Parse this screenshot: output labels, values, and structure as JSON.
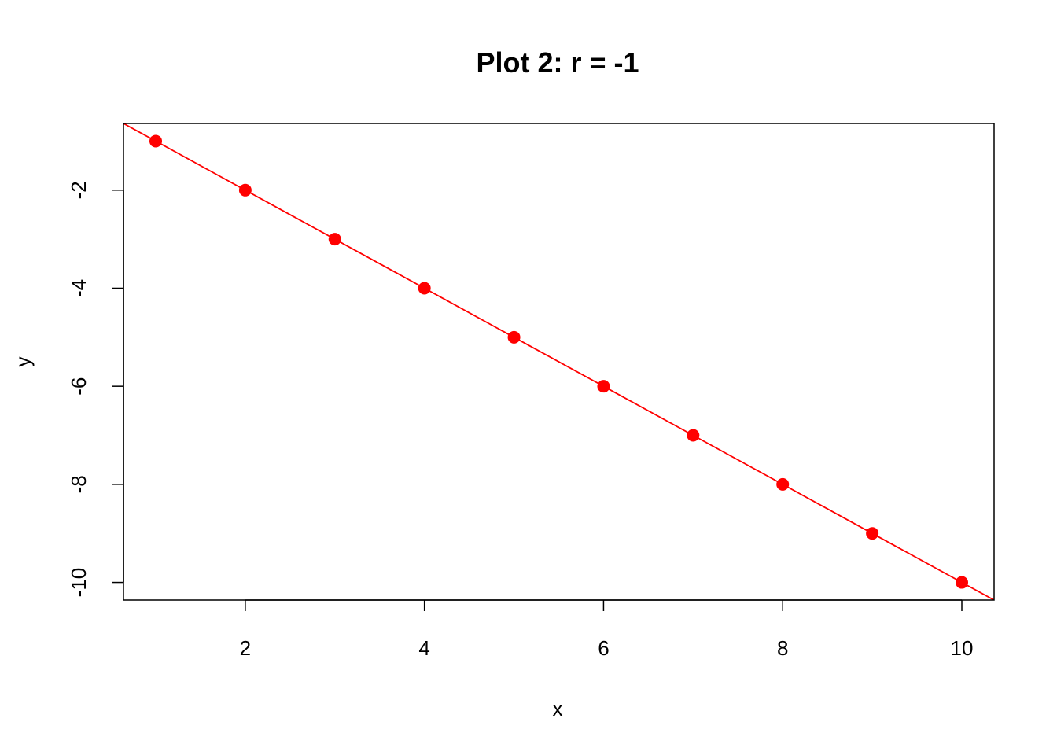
{
  "chart_data": {
    "type": "scatter",
    "title": "Plot 2: r = -1",
    "xlabel": "x",
    "ylabel": "y",
    "xlim": [
      0.64,
      10.36
    ],
    "ylim": [
      -10.36,
      -0.64
    ],
    "xticks": [
      2,
      4,
      6,
      8,
      10
    ],
    "yticks": [
      -2,
      -4,
      -6,
      -8,
      -10
    ],
    "xtick_labels": [
      "2",
      "4",
      "6",
      "8",
      "10"
    ],
    "ytick_labels": [
      "-2",
      "-4",
      "-6",
      "-8",
      "-10"
    ],
    "grid": false,
    "series": [
      {
        "x": [
          1,
          2,
          3,
          4,
          5,
          6,
          7,
          8,
          9,
          10
        ],
        "y": [
          -1,
          -2,
          -3,
          -4,
          -5,
          -6,
          -7,
          -8,
          -9,
          -10
        ],
        "color": "#ff0000"
      }
    ],
    "fit_line": {
      "slope": -1,
      "intercept": 0,
      "color": "#ff0000"
    }
  }
}
